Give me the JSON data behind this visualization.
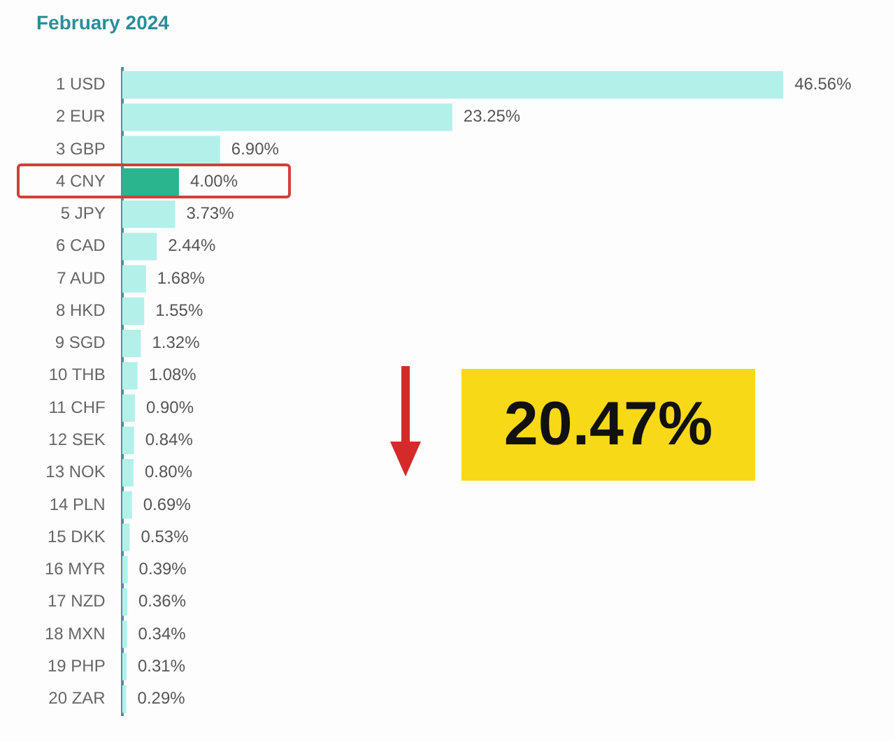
{
  "chart_data": {
    "type": "bar",
    "orientation": "horizontal",
    "title": "February 2024",
    "categories": [
      "1 USD",
      "2 EUR",
      "3 GBP",
      "4 CNY",
      "5 JPY",
      "6 CAD",
      "7 AUD",
      "8 HKD",
      "9 SGD",
      "10 THB",
      "11 CHF",
      "12 SEK",
      "13 NOK",
      "14 PLN",
      "15 DKK",
      "16 MYR",
      "17 NZD",
      "18 MXN",
      "19 PHP",
      "20 ZAR"
    ],
    "values": [
      46.56,
      23.25,
      6.9,
      4.0,
      3.73,
      2.44,
      1.68,
      1.55,
      1.32,
      1.08,
      0.9,
      0.84,
      0.8,
      0.69,
      0.53,
      0.39,
      0.36,
      0.34,
      0.31,
      0.29
    ],
    "value_labels": [
      "46.56%",
      "23.25%",
      "6.90%",
      "4.00%",
      "3.73%",
      "2.44%",
      "1.68%",
      "1.55%",
      "1.32%",
      "1.08%",
      "0.90%",
      "0.84%",
      "0.80%",
      "0.69%",
      "0.53%",
      "0.39%",
      "0.36%",
      "0.34%",
      "0.31%",
      "0.29%"
    ],
    "colors": [
      "#b3f0ea",
      "#b3f0ea",
      "#b3f0ea",
      "#2ab58e",
      "#b3f0ea",
      "#b3f0ea",
      "#b3f0ea",
      "#b3f0ea",
      "#b3f0ea",
      "#b3f0ea",
      "#b3f0ea",
      "#b3f0ea",
      "#b3f0ea",
      "#b3f0ea",
      "#b3f0ea",
      "#b3f0ea",
      "#b3f0ea",
      "#b3f0ea",
      "#b3f0ea",
      "#b3f0ea"
    ],
    "grid": false,
    "legend": false,
    "annotations": [
      "20.47%"
    ]
  }
}
